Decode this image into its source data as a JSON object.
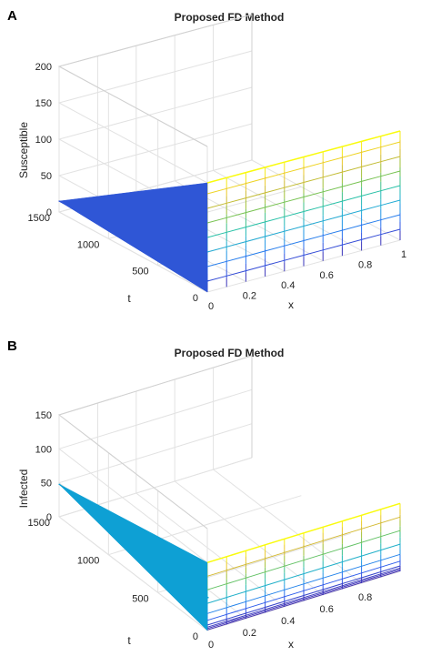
{
  "chart_data": [
    {
      "panel": "A",
      "type": "surface3d",
      "title": "Proposed FD Method",
      "xlabel": "x",
      "ylabel": "t",
      "zlabel": "Susceptible",
      "x_ticks": [
        "0",
        "0.2",
        "0.4",
        "0.6",
        "0.8",
        "1"
      ],
      "t_ticks": [
        "0",
        "500",
        "1000",
        "1500"
      ],
      "z_ticks": [
        "0",
        "50",
        "100",
        "150",
        "200"
      ],
      "xlim": [
        0,
        1
      ],
      "tlim": [
        0,
        1500
      ],
      "zlim": [
        0,
        200
      ],
      "surface_level": 15,
      "x_wall_profile": {
        "x": [
          0,
          0.1,
          0.2,
          0.3,
          0.4,
          0.5,
          0.6,
          0.7,
          0.8,
          0.9,
          1
        ],
        "z": [
          150,
          150,
          150,
          150,
          150,
          150,
          150,
          150,
          150,
          150,
          150
        ]
      },
      "contour_levels": [
        15,
        35,
        55,
        75,
        95,
        115,
        135,
        150
      ],
      "grid": true,
      "colormap": [
        "#3e26a8",
        "#2c63f4",
        "#1ea5e0",
        "#26c0a6",
        "#8bc33a",
        "#e6b830",
        "#f9fb0e"
      ],
      "surface_color": "#2f56d6"
    },
    {
      "panel": "B",
      "type": "surface3d",
      "title": "Proposed FD Method",
      "xlabel": "x",
      "ylabel": "t",
      "zlabel": "Infected",
      "x_ticks": [
        "0",
        "0.2",
        "0.4",
        "0.6",
        "0.8"
      ],
      "t_ticks": [
        "0",
        "500",
        "1000",
        "1500"
      ],
      "z_ticks": [
        "0",
        "50",
        "100",
        "150"
      ],
      "xlim": [
        0,
        1
      ],
      "tlim": [
        0,
        1500
      ],
      "zlim": [
        0,
        150
      ],
      "surface_level": 48,
      "x_wall_profile": {
        "x": [
          0,
          0.1,
          0.2,
          0.3,
          0.4,
          0.5,
          0.6,
          0.7,
          0.8,
          0.9,
          1
        ],
        "z": [
          100,
          100,
          100,
          100,
          100,
          100,
          100,
          100,
          100,
          100,
          100
        ]
      },
      "contour_levels": [
        1,
        3,
        5,
        8,
        15,
        25,
        40,
        60,
        80,
        100
      ],
      "grid": true,
      "colormap": [
        "#3e26a8",
        "#2c63f4",
        "#1ea5e0",
        "#26c0a6",
        "#8bc33a",
        "#e6b830",
        "#f9fb0e"
      ],
      "surface_color": "#0ea0d4"
    }
  ]
}
